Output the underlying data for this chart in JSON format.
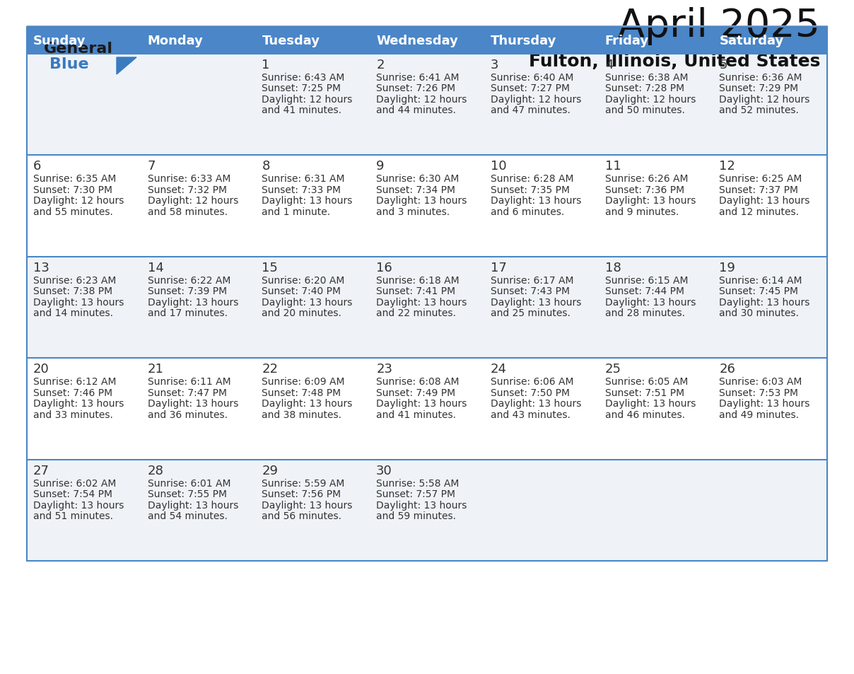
{
  "title": "April 2025",
  "subtitle": "Fulton, Illinois, United States",
  "header_color": "#4a86c8",
  "header_text_color": "#ffffff",
  "cell_bg_even": "#eff3f7",
  "cell_bg_odd": "#ffffff",
  "border_color": "#4a86c8",
  "text_color": "#333333",
  "day_names": [
    "Sunday",
    "Monday",
    "Tuesday",
    "Wednesday",
    "Thursday",
    "Friday",
    "Saturday"
  ],
  "weeks": [
    [
      {
        "day": "",
        "sunrise": "",
        "sunset": "",
        "daylight": ""
      },
      {
        "day": "",
        "sunrise": "",
        "sunset": "",
        "daylight": ""
      },
      {
        "day": "1",
        "sunrise": "6:43 AM",
        "sunset": "7:25 PM",
        "daylight": "12 hours\nand 41 minutes."
      },
      {
        "day": "2",
        "sunrise": "6:41 AM",
        "sunset": "7:26 PM",
        "daylight": "12 hours\nand 44 minutes."
      },
      {
        "day": "3",
        "sunrise": "6:40 AM",
        "sunset": "7:27 PM",
        "daylight": "12 hours\nand 47 minutes."
      },
      {
        "day": "4",
        "sunrise": "6:38 AM",
        "sunset": "7:28 PM",
        "daylight": "12 hours\nand 50 minutes."
      },
      {
        "day": "5",
        "sunrise": "6:36 AM",
        "sunset": "7:29 PM",
        "daylight": "12 hours\nand 52 minutes."
      }
    ],
    [
      {
        "day": "6",
        "sunrise": "6:35 AM",
        "sunset": "7:30 PM",
        "daylight": "12 hours\nand 55 minutes."
      },
      {
        "day": "7",
        "sunrise": "6:33 AM",
        "sunset": "7:32 PM",
        "daylight": "12 hours\nand 58 minutes."
      },
      {
        "day": "8",
        "sunrise": "6:31 AM",
        "sunset": "7:33 PM",
        "daylight": "13 hours\nand 1 minute."
      },
      {
        "day": "9",
        "sunrise": "6:30 AM",
        "sunset": "7:34 PM",
        "daylight": "13 hours\nand 3 minutes."
      },
      {
        "day": "10",
        "sunrise": "6:28 AM",
        "sunset": "7:35 PM",
        "daylight": "13 hours\nand 6 minutes."
      },
      {
        "day": "11",
        "sunrise": "6:26 AM",
        "sunset": "7:36 PM",
        "daylight": "13 hours\nand 9 minutes."
      },
      {
        "day": "12",
        "sunrise": "6:25 AM",
        "sunset": "7:37 PM",
        "daylight": "13 hours\nand 12 minutes."
      }
    ],
    [
      {
        "day": "13",
        "sunrise": "6:23 AM",
        "sunset": "7:38 PM",
        "daylight": "13 hours\nand 14 minutes."
      },
      {
        "day": "14",
        "sunrise": "6:22 AM",
        "sunset": "7:39 PM",
        "daylight": "13 hours\nand 17 minutes."
      },
      {
        "day": "15",
        "sunrise": "6:20 AM",
        "sunset": "7:40 PM",
        "daylight": "13 hours\nand 20 minutes."
      },
      {
        "day": "16",
        "sunrise": "6:18 AM",
        "sunset": "7:41 PM",
        "daylight": "13 hours\nand 22 minutes."
      },
      {
        "day": "17",
        "sunrise": "6:17 AM",
        "sunset": "7:43 PM",
        "daylight": "13 hours\nand 25 minutes."
      },
      {
        "day": "18",
        "sunrise": "6:15 AM",
        "sunset": "7:44 PM",
        "daylight": "13 hours\nand 28 minutes."
      },
      {
        "day": "19",
        "sunrise": "6:14 AM",
        "sunset": "7:45 PM",
        "daylight": "13 hours\nand 30 minutes."
      }
    ],
    [
      {
        "day": "20",
        "sunrise": "6:12 AM",
        "sunset": "7:46 PM",
        "daylight": "13 hours\nand 33 minutes."
      },
      {
        "day": "21",
        "sunrise": "6:11 AM",
        "sunset": "7:47 PM",
        "daylight": "13 hours\nand 36 minutes."
      },
      {
        "day": "22",
        "sunrise": "6:09 AM",
        "sunset": "7:48 PM",
        "daylight": "13 hours\nand 38 minutes."
      },
      {
        "day": "23",
        "sunrise": "6:08 AM",
        "sunset": "7:49 PM",
        "daylight": "13 hours\nand 41 minutes."
      },
      {
        "day": "24",
        "sunrise": "6:06 AM",
        "sunset": "7:50 PM",
        "daylight": "13 hours\nand 43 minutes."
      },
      {
        "day": "25",
        "sunrise": "6:05 AM",
        "sunset": "7:51 PM",
        "daylight": "13 hours\nand 46 minutes."
      },
      {
        "day": "26",
        "sunrise": "6:03 AM",
        "sunset": "7:53 PM",
        "daylight": "13 hours\nand 49 minutes."
      }
    ],
    [
      {
        "day": "27",
        "sunrise": "6:02 AM",
        "sunset": "7:54 PM",
        "daylight": "13 hours\nand 51 minutes."
      },
      {
        "day": "28",
        "sunrise": "6:01 AM",
        "sunset": "7:55 PM",
        "daylight": "13 hours\nand 54 minutes."
      },
      {
        "day": "29",
        "sunrise": "5:59 AM",
        "sunset": "7:56 PM",
        "daylight": "13 hours\nand 56 minutes."
      },
      {
        "day": "30",
        "sunrise": "5:58 AM",
        "sunset": "7:57 PM",
        "daylight": "13 hours\nand 59 minutes."
      },
      {
        "day": "",
        "sunrise": "",
        "sunset": "",
        "daylight": ""
      },
      {
        "day": "",
        "sunrise": "",
        "sunset": "",
        "daylight": ""
      },
      {
        "day": "",
        "sunrise": "",
        "sunset": "",
        "daylight": ""
      }
    ]
  ],
  "logo_text1": "General",
  "logo_text2": "Blue",
  "logo_color1": "#1a1a1a",
  "logo_color2": "#3a7abf",
  "logo_triangle_color": "#3a7abf",
  "title_fontsize": 40,
  "subtitle_fontsize": 18,
  "header_fontsize": 13,
  "daynum_fontsize": 13,
  "cell_fontsize": 10
}
